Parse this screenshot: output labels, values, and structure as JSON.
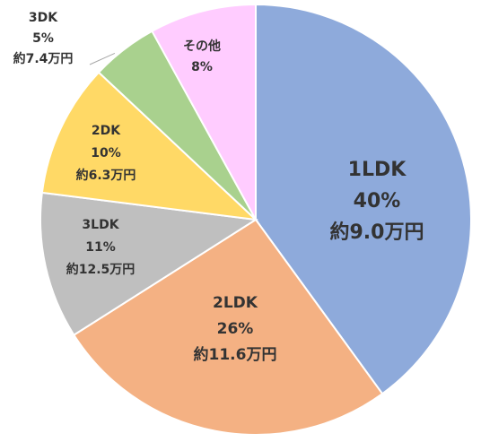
{
  "chart_data": {
    "type": "pie",
    "title": "",
    "slices": [
      {
        "name": "1LDK",
        "percent_label": "40%",
        "price_label": "約9.0万円",
        "value": 40,
        "color": "#8eaadb"
      },
      {
        "name": "2LDK",
        "percent_label": "26%",
        "price_label": "約11.6万円",
        "value": 26,
        "color": "#f4b183"
      },
      {
        "name": "3LDK",
        "percent_label": "11%",
        "price_label": "約12.5万円",
        "value": 11,
        "color": "#bfbfbf"
      },
      {
        "name": "2DK",
        "percent_label": "10%",
        "price_label": "約6.3万円",
        "value": 10,
        "color": "#ffd966"
      },
      {
        "name": "3DK",
        "percent_label": "5%",
        "price_label": "約7.4万円",
        "value": 5,
        "color": "#a9d18e"
      },
      {
        "name": "その他",
        "percent_label": "8%",
        "price_label": "",
        "value": 8,
        "color": "#ffccff"
      }
    ],
    "start": "top",
    "direction": "clockwise",
    "legend": "none"
  }
}
